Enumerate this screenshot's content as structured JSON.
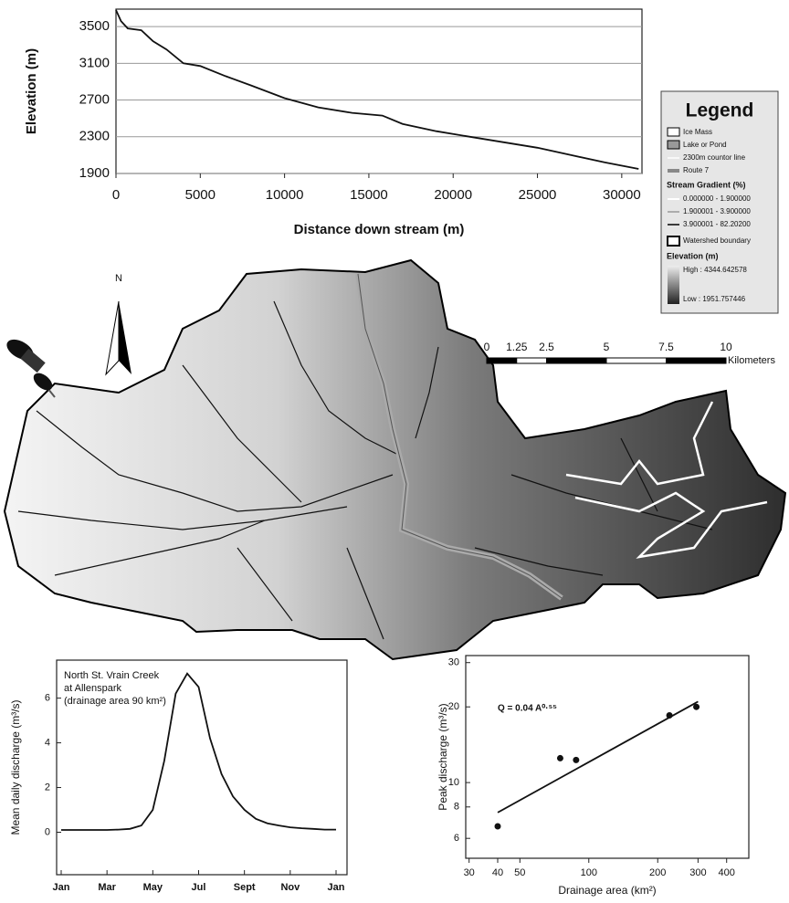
{
  "chart_data": [
    {
      "type": "line",
      "color": "#111111",
      "grid": true,
      "x": [
        0,
        300,
        700,
        1500,
        2200,
        3000,
        4000,
        5000,
        6500,
        8000,
        10000,
        12000,
        14000,
        15800,
        17000,
        19000,
        21000,
        23000,
        25000,
        27000,
        29000,
        31000
      ],
      "values": [
        3680,
        3560,
        3480,
        3460,
        3340,
        3250,
        3100,
        3070,
        2960,
        2860,
        2720,
        2620,
        2560,
        2530,
        2440,
        2360,
        2300,
        2240,
        2180,
        2100,
        2020,
        1950
      ],
      "xlim": [
        0,
        31200
      ],
      "ylim": [
        1900,
        3690
      ],
      "xticks": [
        0,
        5000,
        10000,
        15000,
        20000,
        25000,
        30000
      ],
      "yticks": [
        1900,
        2300,
        2700,
        3100,
        3500
      ],
      "xlabel": "Distance down stream (m)",
      "ylabel": "Elevation (m)"
    },
    {
      "type": "line",
      "color": "#111111",
      "categories": [
        "Jan",
        null,
        null,
        null,
        "Mar",
        null,
        null,
        null,
        "May",
        null,
        null,
        null,
        "Jul",
        null,
        null,
        null,
        "Sept",
        null,
        null,
        null,
        "Nov",
        null,
        null,
        null,
        "Jan"
      ],
      "values": [
        0.1,
        0.1,
        0.1,
        0.1,
        0.1,
        0.12,
        0.15,
        0.3,
        1.0,
        3.2,
        6.2,
        7.1,
        6.5,
        4.2,
        2.6,
        1.6,
        1.0,
        0.6,
        0.4,
        0.3,
        0.22,
        0.18,
        0.15,
        0.12,
        0.12
      ],
      "ylim": [
        -1.9,
        7.7
      ],
      "yticks": [
        0,
        2,
        4,
        6
      ],
      "ylabel": "Mean daily discharge (m³/s)",
      "annotation": [
        "North St. Vrain Creek",
        "at Allenspark",
        "(drainage area 90 km²)"
      ]
    },
    {
      "type": "scatter",
      "color": "#111111",
      "log_x": true,
      "log_y": true,
      "x": [
        40,
        75,
        88,
        225,
        295
      ],
      "values": [
        6.7,
        12.5,
        12.3,
        18.5,
        20
      ],
      "fit": {
        "x": [
          40,
          300
        ],
        "values": [
          7.6,
          21
        ]
      },
      "xlim": [
        29,
        500
      ],
      "ylim": [
        5,
        32
      ],
      "xticks": [
        30,
        40,
        50,
        100,
        200,
        300,
        400
      ],
      "yticks": [
        6,
        8,
        10,
        20,
        30
      ],
      "xlabel": "Drainage area (km²)",
      "ylabel": "Peak discharge (m³/s)",
      "annotation": "Q = 0.04 A⁰·⁵⁵"
    }
  ],
  "map": {
    "north": "N",
    "scale_bar": {
      "ticks": [
        0,
        1.25,
        2.5,
        5,
        7.5,
        10
      ],
      "unit": "Kilometers"
    },
    "legend": {
      "title": "Legend",
      "items": [
        "Ice Mass",
        "Lake or Pond",
        "2300m countor line",
        "Route 7"
      ],
      "stream_gradient": {
        "title": "Stream Gradient (%)",
        "classes": [
          "0.000000 - 1.900000",
          "1.900001 - 3.900000",
          "3.900001 - 82.20200"
        ]
      },
      "watershed": "Watershed boundary",
      "elevation": {
        "title": "Elevation (m)",
        "high": "High : 4344.642578",
        "low": "Low : 1951.757446"
      }
    }
  }
}
